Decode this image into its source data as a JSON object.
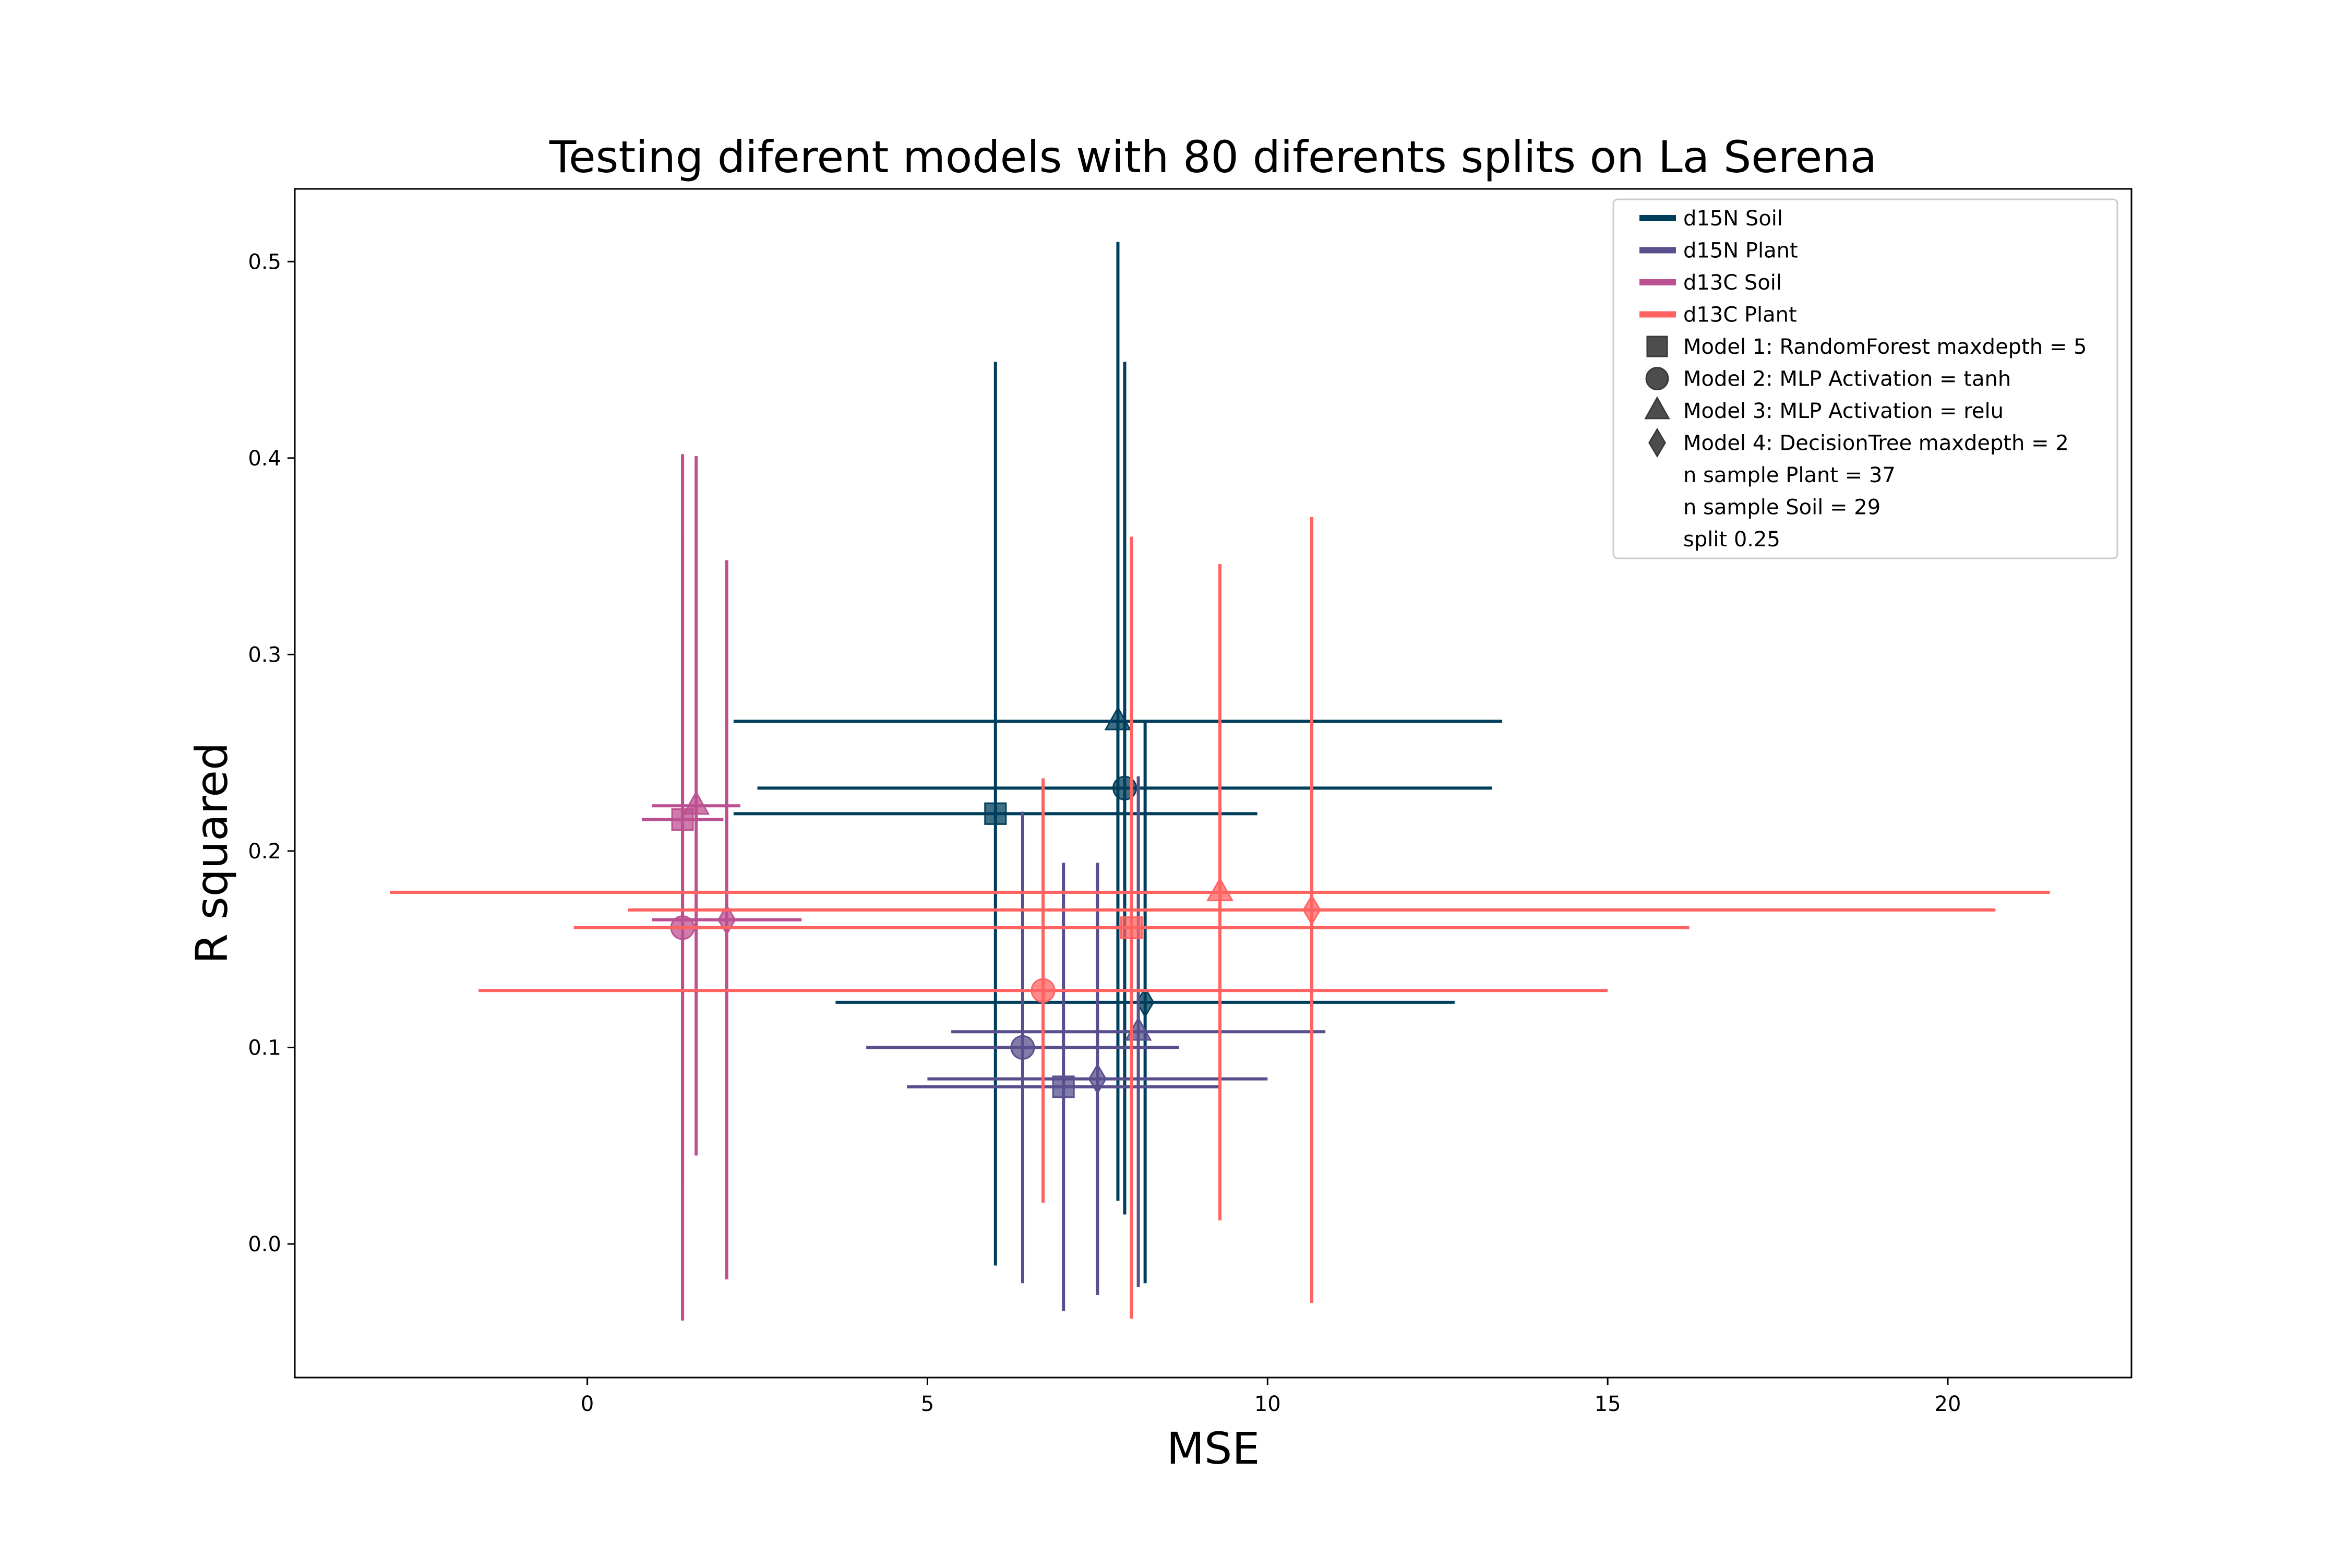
{
  "chart_data": {
    "type": "scatter",
    "title": "Testing diferent models with 80 diferents splits on La Serena",
    "xlabel": "MSE",
    "ylabel": "R squared",
    "xlim": [
      -4.3,
      22.7
    ],
    "ylim": [
      -0.068,
      0.537
    ],
    "xticks": [
      0,
      5,
      10,
      15,
      20
    ],
    "yticks": [
      0.0,
      0.1,
      0.2,
      0.3,
      0.4,
      0.5
    ],
    "grid": false,
    "legend_position": "top-right",
    "legend": {
      "series": [
        {
          "label": "d15N Soil",
          "color": "#003f5c"
        },
        {
          "label": "d15N Plant",
          "color": "#58508d"
        },
        {
          "label": "d13C Soil",
          "color": "#bc5090"
        },
        {
          "label": "d13C Plant",
          "color": "#ff6361"
        }
      ],
      "models": [
        {
          "label": "Model 1: RandomForest maxdepth = 5",
          "marker": "square"
        },
        {
          "label": "Model 2: MLP Activation = tanh",
          "marker": "circle"
        },
        {
          "label": "Model 3: MLP Activation = relu",
          "marker": "triangle"
        },
        {
          "label": "Model 4: DecisionTree maxdepth = 2",
          "marker": "diamond"
        }
      ],
      "notes": [
        "n sample Plant = 37",
        "n sample Soil = 29",
        "split 0.25"
      ]
    },
    "series": [
      {
        "name": "d15N Soil",
        "color": "#003f5c",
        "points": [
          {
            "model": "square",
            "x": 6.0,
            "y": 0.219,
            "x_err": [
              3.85,
              3.85
            ],
            "y_err": [
              0.23,
              0.23
            ]
          },
          {
            "model": "circle",
            "x": 7.9,
            "y": 0.232,
            "x_err": [
              5.4,
              5.4
            ],
            "y_err": [
              0.217,
              0.217
            ]
          },
          {
            "model": "triangle",
            "x": 7.8,
            "y": 0.266,
            "x_err": [
              5.65,
              5.65
            ],
            "y_err": [
              0.244,
              0.244
            ]
          },
          {
            "model": "diamond",
            "x": 8.2,
            "y": 0.123,
            "x_err": [
              4.55,
              4.55
            ],
            "y_err": [
              0.143,
              0.143
            ]
          }
        ]
      },
      {
        "name": "d15N Plant",
        "color": "#58508d",
        "points": [
          {
            "model": "square",
            "x": 7.0,
            "y": 0.08,
            "x_err": [
              2.3,
              2.3
            ],
            "y_err": [
              0.114,
              0.114
            ]
          },
          {
            "model": "circle",
            "x": 6.4,
            "y": 0.1,
            "x_err": [
              2.3,
              2.3
            ],
            "y_err": [
              0.12,
              0.12
            ]
          },
          {
            "model": "triangle",
            "x": 8.1,
            "y": 0.108,
            "x_err": [
              2.75,
              2.75
            ],
            "y_err": [
              0.13,
              0.13
            ]
          },
          {
            "model": "diamond",
            "x": 7.5,
            "y": 0.084,
            "x_err": [
              2.5,
              2.5
            ],
            "y_err": [
              0.11,
              0.11
            ]
          }
        ]
      },
      {
        "name": "d13C Soil",
        "color": "#bc5090",
        "points": [
          {
            "model": "square",
            "x": 1.4,
            "y": 0.216,
            "x_err": [
              0.6,
              0.6
            ],
            "y_err": [
              0.186,
              0.186
            ]
          },
          {
            "model": "circle",
            "x": 1.4,
            "y": 0.161,
            "x_err": [
              0.6,
              0.6
            ],
            "y_err": [
              0.2,
              0.2
            ]
          },
          {
            "model": "triangle",
            "x": 1.6,
            "y": 0.223,
            "x_err": [
              0.65,
              0.65
            ],
            "y_err": [
              0.178,
              0.178
            ]
          },
          {
            "model": "diamond",
            "x": 2.05,
            "y": 0.165,
            "x_err": [
              1.1,
              1.1
            ],
            "y_err": [
              0.183,
              0.183
            ]
          }
        ]
      },
      {
        "name": "d13C Plant",
        "color": "#ff6361",
        "points": [
          {
            "model": "square",
            "x": 8.0,
            "y": 0.161,
            "x_err": [
              8.2,
              8.2
            ],
            "y_err": [
              0.199,
              0.199
            ]
          },
          {
            "model": "circle",
            "x": 6.7,
            "y": 0.129,
            "x_err": [
              8.3,
              8.3
            ],
            "y_err": [
              0.108,
              0.108
            ]
          },
          {
            "model": "triangle",
            "x": 9.3,
            "y": 0.179,
            "x_err": [
              12.2,
              12.2
            ],
            "y_err": [
              0.167,
              0.167
            ]
          },
          {
            "model": "diamond",
            "x": 10.65,
            "y": 0.17,
            "x_err": [
              10.05,
              10.05
            ],
            "y_err": [
              0.2,
              0.2
            ]
          }
        ]
      }
    ]
  }
}
